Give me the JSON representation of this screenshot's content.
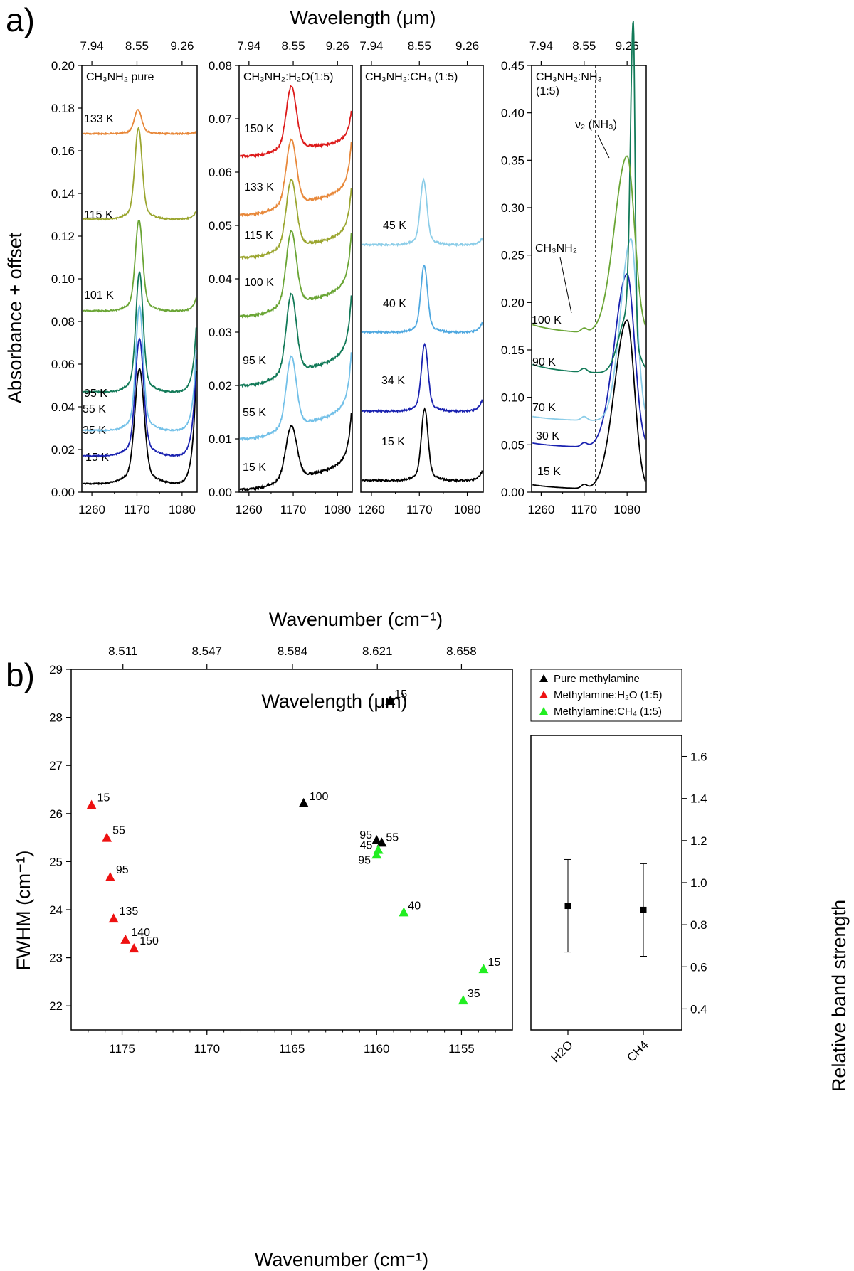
{
  "figure": {
    "a": {
      "letter": "a)",
      "top_axis_title": "Wavelength (μm)",
      "bottom_axis_title": "Wavenumber (cm⁻¹)",
      "y_axis_title": "Absorbance + offset",
      "x_ticks": [
        "1260",
        "1170",
        "1080"
      ],
      "top_ticks": [
        "7.94",
        "8.55",
        "9.26"
      ],
      "annotations": {
        "nh3_band": "ν₂ (NH₃)",
        "ch3nh2_band": "CH₃NH₂"
      }
    },
    "b": {
      "letter": "b)",
      "top_axis_title": "Wavelength (μm)",
      "bottom_axis_title": "Wavenumber (cm⁻¹)",
      "y_axis_title": "FWHM (cm⁻¹)",
      "right_y_title": "Relative band strength"
    }
  },
  "chart_data": [
    {
      "type": "line",
      "panel": "a1",
      "label": "CH₃NH₂ pure",
      "xlim": [
        1280,
        1050
      ],
      "ylim": [
        0,
        0.2
      ],
      "yticks": [
        "0.00",
        "0.02",
        "0.04",
        "0.06",
        "0.08",
        "0.10",
        "0.12",
        "0.14",
        "0.16",
        "0.18",
        "0.20"
      ],
      "series": [
        {
          "name": "15 K",
          "color": "#000000",
          "offset": 0.004,
          "peak_x": 1165,
          "height": 0.048,
          "width": 9,
          "edge": 0.07
        },
        {
          "name": "35 K",
          "color": "#1a22b0",
          "offset": 0.017,
          "peak_x": 1165,
          "height": 0.049,
          "width": 8,
          "edge": 0.06
        },
        {
          "name": "55 K",
          "color": "#72c0e8",
          "offset": 0.029,
          "peak_x": 1165,
          "height": 0.052,
          "width": 7,
          "edge": 0.05
        },
        {
          "name": "95 K",
          "color": "#127a58",
          "offset": 0.047,
          "peak_x": 1165,
          "height": 0.05,
          "width": 7,
          "edge": 0.04
        },
        {
          "name": "101 K",
          "color": "#6aa535",
          "offset": 0.085,
          "peak_x": 1166,
          "height": 0.038,
          "width": 7,
          "edge": 0.008
        },
        {
          "name": "115 K",
          "color": "#9ba630",
          "offset": 0.128,
          "peak_x": 1167,
          "height": 0.038,
          "width": 7,
          "edge": 0.005
        },
        {
          "name": "133 K",
          "color": "#e8883a",
          "offset": 0.168,
          "peak_x": 1168,
          "height": 0.01,
          "width": 7,
          "edge": 0.001
        }
      ]
    },
    {
      "type": "line",
      "panel": "a2",
      "label": "CH₃NH₂:H₂O(1:5)",
      "xlim": [
        1280,
        1050
      ],
      "ylim": [
        0,
        0.08
      ],
      "yticks": [
        "0.00",
        "0.01",
        "0.02",
        "0.03",
        "0.04",
        "0.05",
        "0.06",
        "0.07",
        "0.08"
      ],
      "series": [
        {
          "name": "15 K",
          "color": "#000000",
          "offset": 0.0005,
          "peak_x": 1174,
          "height": 0.0095,
          "width": 11,
          "edge": 0.011
        },
        {
          "name": "55 K",
          "color": "#72c0e8",
          "offset": 0.01,
          "peak_x": 1174,
          "height": 0.0125,
          "width": 10,
          "edge": 0.0125
        },
        {
          "name": "95 K",
          "color": "#127a58",
          "offset": 0.02,
          "peak_x": 1174,
          "height": 0.014,
          "width": 10,
          "edge": 0.013
        },
        {
          "name": "100 K",
          "color": "#6aa535",
          "offset": 0.033,
          "peak_x": 1174,
          "height": 0.013,
          "width": 10,
          "edge": 0.012
        },
        {
          "name": "115 K",
          "color": "#9ba630",
          "offset": 0.044,
          "peak_x": 1174,
          "height": 0.012,
          "width": 10,
          "edge": 0.01
        },
        {
          "name": "133 K",
          "color": "#e8883a",
          "offset": 0.052,
          "peak_x": 1174,
          "height": 0.0115,
          "width": 10,
          "edge": 0.0105
        },
        {
          "name": "150 K",
          "color": "#dd1a1a",
          "offset": 0.063,
          "peak_x": 1174,
          "height": 0.011,
          "width": 10,
          "edge": 0.0065
        }
      ]
    },
    {
      "type": "line",
      "panel": "a3",
      "label": "CH₃NH₂:CH₄    (1:5)",
      "xlim": [
        1280,
        1050
      ],
      "ylim": [
        0,
        0.2
      ],
      "series": [
        {
          "name": "15 K",
          "color": "#000000",
          "offset": 0.0055,
          "peak_x": 1160,
          "height": 0.03,
          "width": 6,
          "edge": 0.006
        },
        {
          "name": "34 K",
          "color": "#1a22b0",
          "offset": 0.038,
          "peak_x": 1160,
          "height": 0.028,
          "width": 6,
          "edge": 0.007
        },
        {
          "name": "40 K",
          "color": "#4fa8e0",
          "offset": 0.075,
          "peak_x": 1161,
          "height": 0.028,
          "width": 6,
          "edge": 0.006
        },
        {
          "name": "45 K",
          "color": "#8ccde8",
          "offset": 0.116,
          "peak_x": 1162,
          "height": 0.027,
          "width": 6,
          "edge": 0.004
        }
      ]
    },
    {
      "type": "line",
      "panel": "a4",
      "label": "CH₃NH₂:NH₃",
      "label2": "(1:5)",
      "xlim": [
        1280,
        1040
      ],
      "ylim": [
        0,
        0.45
      ],
      "yticks": [
        "0.00",
        "0.05",
        "0.10",
        "0.15",
        "0.20",
        "0.25",
        "0.30",
        "0.35",
        "0.40",
        "0.45"
      ],
      "dashed_x": 1170,
      "series": [
        {
          "name": "15 K",
          "color": "#000000",
          "offset": 0.003,
          "peak_x": 1080,
          "height": 0.178,
          "width": 22
        },
        {
          "name": "30 K",
          "color": "#1a22b0",
          "offset": 0.047,
          "peak_x": 1080,
          "height": 0.183,
          "width": 22
        },
        {
          "name": "70 K",
          "color": "#8ccde8",
          "offset": 0.075,
          "peak_x": 1072,
          "height": 0.192,
          "width": 18
        },
        {
          "name": "90 K",
          "color": "#127a58",
          "offset": 0.125,
          "peak_x": 1067,
          "height": 0.325,
          "width": 5
        },
        {
          "name": "100 K",
          "color": "#6aa535",
          "offset": 0.167,
          "peak_x": 1080,
          "height": 0.187,
          "width": 22
        }
      ]
    },
    {
      "type": "scatter",
      "panel": "b-main",
      "xlabel": "Wavenumber (cm⁻¹)",
      "ylabel": "FWHM (cm⁻¹)",
      "xlim": [
        1178,
        1152
      ],
      "ylim": [
        21.5,
        29
      ],
      "xticks": [
        "1175",
        "1170",
        "1165",
        "1160",
        "1155"
      ],
      "yticks": [
        "22",
        "23",
        "24",
        "25",
        "26",
        "27",
        "28",
        "29"
      ],
      "top_ticks": [
        "8.511",
        "8.547",
        "8.584",
        "8.621",
        "8.658"
      ],
      "legend": [
        "Pure methylamine",
        "Methylamine:H₂O (1:5)",
        "Methylamine:CH₄ (1:5)"
      ],
      "series": [
        {
          "name": "Pure methylamine",
          "color": "#000000",
          "points": [
            {
              "x": 1159.2,
              "y": 28.35,
              "label": "15"
            },
            {
              "x": 1164.3,
              "y": 26.22,
              "label": "100"
            },
            {
              "x": 1160.0,
              "y": 25.45,
              "label": "95"
            },
            {
              "x": 1159.7,
              "y": 25.4,
              "label": "55"
            }
          ]
        },
        {
          "name": "Methylamine:H₂O (1:5)",
          "color": "#ee1111",
          "points": [
            {
              "x": 1176.8,
              "y": 26.18,
              "label": "15"
            },
            {
              "x": 1175.9,
              "y": 25.5,
              "label": "55"
            },
            {
              "x": 1175.7,
              "y": 24.68,
              "label": "95"
            },
            {
              "x": 1175.5,
              "y": 23.82,
              "label": "135"
            },
            {
              "x": 1174.8,
              "y": 23.38,
              "label": "140"
            },
            {
              "x": 1174.3,
              "y": 23.2,
              "label": "150"
            }
          ]
        },
        {
          "name": "Methylamine:CH₄ (1:5)",
          "color": "#22ee22",
          "points": [
            {
              "x": 1159.9,
              "y": 25.25,
              "label": "45"
            },
            {
              "x": 1160.0,
              "y": 25.15,
              "label": "95"
            },
            {
              "x": 1158.4,
              "y": 23.95,
              "label": "40"
            },
            {
              "x": 1153.7,
              "y": 22.77,
              "label": "15"
            },
            {
              "x": 1154.9,
              "y": 22.12,
              "label": "35"
            }
          ]
        }
      ]
    },
    {
      "type": "scatter",
      "panel": "b-inset",
      "ylabel": "Relative band strength",
      "categories": [
        "H2O",
        "CH4"
      ],
      "ylim": [
        0.3,
        1.7
      ],
      "yticks": [
        "0.4",
        "0.6",
        "0.8",
        "1.0",
        "1.2",
        "1.4",
        "1.6"
      ],
      "values": [
        0.89,
        0.87
      ],
      "errors": [
        0.22,
        0.22
      ]
    }
  ]
}
